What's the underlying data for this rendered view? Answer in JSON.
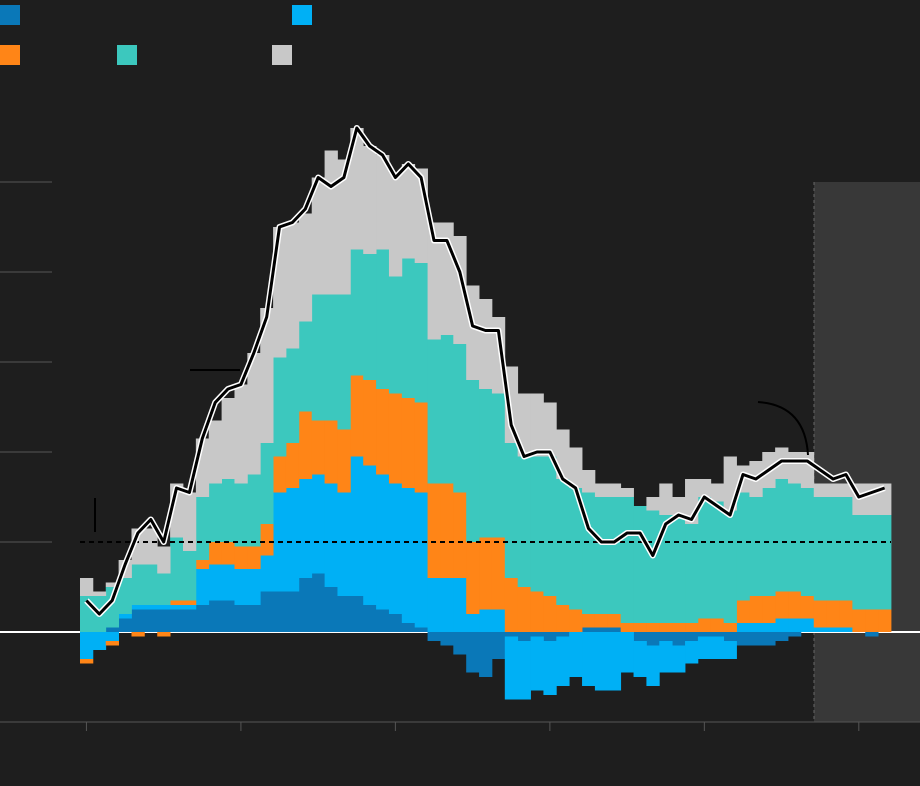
{
  "chart_data": {
    "type": "bar",
    "stacked": true,
    "categories": [
      null,
      null,
      null,
      null,
      null,
      null,
      null,
      null,
      null,
      null,
      null,
      null,
      null,
      null,
      null,
      null,
      null,
      null,
      null,
      null,
      null,
      null,
      null,
      null,
      null,
      null,
      null,
      null,
      null,
      null,
      null,
      null,
      null,
      null,
      null,
      null,
      null,
      null,
      null,
      null,
      null,
      null,
      null,
      null,
      null,
      null,
      null,
      null,
      null,
      null,
      null,
      null,
      null,
      null,
      null,
      null,
      null,
      null,
      null,
      null,
      null,
      null,
      null
    ],
    "ylim": [
      -2,
      12
    ],
    "yticks": [
      -2,
      0,
      2,
      4,
      6,
      8,
      10
    ],
    "reference_line": 2,
    "series": [
      {
        "color": "#0a78b8",
        "values": [
          0,
          0,
          0.1,
          0.3,
          0.5,
          0.5,
          0.5,
          0.5,
          0.5,
          0.6,
          0.7,
          0.7,
          0.6,
          0.6,
          0.9,
          0.9,
          0.9,
          1.2,
          1.3,
          1.0,
          0.8,
          0.8,
          0.6,
          0.5,
          0.4,
          0.2,
          0.1,
          -0.2,
          -0.3,
          -0.5,
          -0.9,
          -1.0,
          -0.6,
          -0.1,
          -0.2,
          -0.1,
          -0.2,
          -0.1,
          0,
          0.1,
          0.1,
          0.1,
          0,
          -0.2,
          -0.3,
          -0.2,
          -0.3,
          -0.2,
          -0.1,
          -0.1,
          -0.2,
          -0.3,
          -0.3,
          -0.3,
          -0.2,
          -0.1,
          0,
          0,
          0,
          0,
          0,
          -0.1,
          0
        ]
      },
      {
        "color": "#00b0f5",
        "values": [
          -0.6,
          -0.4,
          -0.2,
          0.1,
          0.1,
          0.1,
          0.1,
          0.1,
          0.1,
          0.8,
          0.8,
          0.8,
          0.8,
          0.8,
          0.8,
          2.2,
          2.3,
          2.2,
          2.2,
          2.3,
          2.3,
          3.1,
          3.1,
          3.0,
          2.9,
          3.0,
          3.0,
          1.2,
          1.2,
          1.2,
          0.4,
          0.5,
          0.5,
          -1.4,
          -1.3,
          -1.2,
          -1.2,
          -1.1,
          -1.0,
          -1.2,
          -1.3,
          -1.3,
          -0.9,
          -0.8,
          -0.9,
          -0.7,
          -0.6,
          -0.5,
          -0.5,
          -0.5,
          -0.4,
          0.2,
          0.2,
          0.2,
          0.3,
          0.3,
          0.3,
          0.1,
          0.1,
          0.1,
          0,
          0,
          0
        ]
      },
      {
        "color": "#ff8517",
        "values": [
          -0.1,
          0,
          -0.1,
          0,
          -0.1,
          0,
          -0.1,
          0.1,
          0.1,
          0.2,
          0.5,
          0.5,
          0.5,
          0.5,
          0.7,
          0.8,
          1.0,
          1.5,
          1.2,
          1.4,
          1.4,
          1.8,
          1.9,
          1.9,
          2.0,
          2.0,
          2.0,
          2.1,
          2.1,
          1.9,
          1.6,
          1.6,
          1.6,
          1.2,
          1.0,
          0.9,
          0.8,
          0.6,
          0.5,
          0.3,
          0.3,
          0.3,
          0.2,
          0.2,
          0.2,
          0.2,
          0.2,
          0.2,
          0.3,
          0.3,
          0.2,
          0.5,
          0.6,
          0.6,
          0.6,
          0.6,
          0.5,
          0.6,
          0.6,
          0.6,
          0.5,
          0.5,
          0.5
        ]
      },
      {
        "color": "#3cc8be",
        "values": [
          0.8,
          0.8,
          0.9,
          0.8,
          0.9,
          0.9,
          0.7,
          1.4,
          1.1,
          1.4,
          1.3,
          1.4,
          1.4,
          1.6,
          1.8,
          2.2,
          2.1,
          2.0,
          2.8,
          2.8,
          3.0,
          2.8,
          2.8,
          3.1,
          2.6,
          3.1,
          3.1,
          3.2,
          3.3,
          3.3,
          3.6,
          3.3,
          3.2,
          3.0,
          2.9,
          3.0,
          3.1,
          2.8,
          2.7,
          2.7,
          2.6,
          2.6,
          2.8,
          2.6,
          2.5,
          2.4,
          2.4,
          2.2,
          2.7,
          2.6,
          2.5,
          2.4,
          2.2,
          2.4,
          2.5,
          2.4,
          2.4,
          2.3,
          2.3,
          2.3,
          2.1,
          2.1,
          2.1
        ]
      },
      {
        "color": "#c8c8c8",
        "values": [
          0.4,
          0.1,
          0.1,
          0.4,
          0.8,
          0.8,
          0.6,
          1.2,
          1.3,
          1.3,
          1.4,
          1.8,
          2.2,
          2.7,
          3.0,
          2.9,
          2.8,
          2.4,
          2.6,
          3.2,
          3.0,
          2.7,
          2.4,
          2.1,
          2.3,
          2.1,
          2.1,
          2.6,
          2.5,
          2.4,
          2.1,
          2.0,
          1.7,
          1.7,
          1.4,
          1.4,
          1.2,
          1.1,
          0.9,
          0.5,
          0.3,
          0.3,
          0.2,
          0,
          0.3,
          0.7,
          0.4,
          1.0,
          0.4,
          0.4,
          1.2,
          0.6,
          0.8,
          0.8,
          0.7,
          0.7,
          0.8,
          0.3,
          0.3,
          0.3,
          0.7,
          0.7,
          0.7
        ]
      },
      {
        "type": "line",
        "color": "#000000",
        "values": [
          0.7,
          0.4,
          0.7,
          1.5,
          2.2,
          2.5,
          2.0,
          3.2,
          3.1,
          4.3,
          5.1,
          5.4,
          5.5,
          6.2,
          7.0,
          9.0,
          9.1,
          9.4,
          10.1,
          9.9,
          10.1,
          11.2,
          10.8,
          10.6,
          10.1,
          10.4,
          10.1,
          8.7,
          8.7,
          8.0,
          6.8,
          6.7,
          6.7,
          4.6,
          3.9,
          4.0,
          4.0,
          3.4,
          3.2,
          2.3,
          2.0,
          2.0,
          2.2,
          2.2,
          1.7,
          2.4,
          2.6,
          2.5,
          3.0,
          2.8,
          2.6,
          3.5,
          3.4,
          3.6,
          3.8,
          3.8,
          3.8,
          3.6,
          3.4,
          3.5,
          3.0,
          3.1,
          3.2
        ]
      }
    ]
  }
}
